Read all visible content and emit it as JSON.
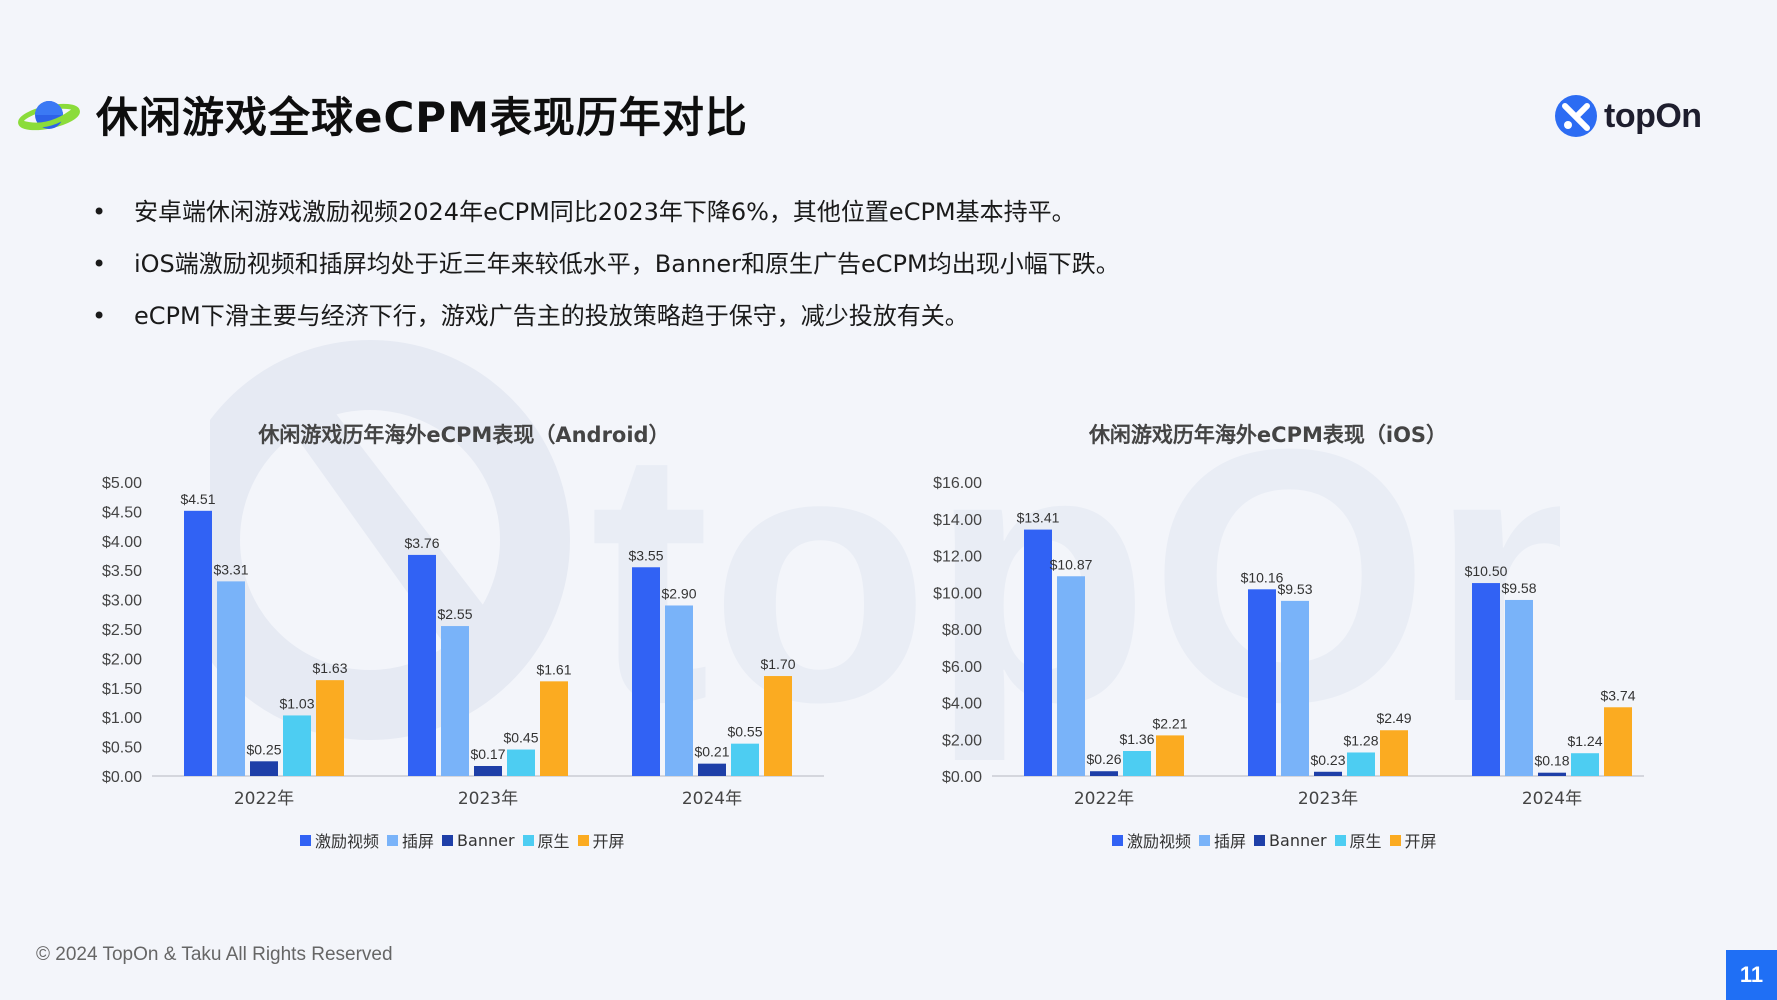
{
  "page": {
    "title": "休闲游戏全球eCPM表现历年对比",
    "logo_text": "topOn",
    "footer": "© 2024 TopOn & Taku All Rights Reserved",
    "page_number": "11",
    "bullets": [
      "安卓端休闲游戏激励视频2024年eCPM同比2023年下降6%，其他位置eCPM基本持平。",
      "iOS端激励视频和插屏均处于近三年来较低水平，Banner和原生广告eCPM均出现小幅下跌。",
      "eCPM下滑主要与经济下行，游戏广告主的投放策略趋于保守，减少投放有关。"
    ],
    "bullet_glyph": "•",
    "colors": {
      "激励视频": "#3162f4",
      "插屏": "#79b3f9",
      "Banner": "#1e3fa8",
      "原生": "#4dcdf2",
      "开屏": "#fbab21",
      "page_number_bg": "#1f6ff5"
    }
  },
  "chart_data": [
    {
      "type": "bar",
      "title": "休闲游戏历年海外eCPM表现（Android）",
      "categories": [
        "2022年",
        "2023年",
        "2024年"
      ],
      "ylim": [
        0,
        5
      ],
      "yticks": [
        "$0.00",
        "$0.50",
        "$1.00",
        "$1.50",
        "$2.00",
        "$2.50",
        "$3.00",
        "$3.50",
        "$4.00",
        "$4.50",
        "$5.00"
      ],
      "legend_position": "bottom",
      "grid": false,
      "series": [
        {
          "name": "激励视频",
          "values": [
            4.51,
            3.76,
            3.55
          ],
          "labels": [
            "$4.51",
            "$3.76",
            "$3.55"
          ]
        },
        {
          "name": "插屏",
          "values": [
            3.31,
            2.55,
            2.9
          ],
          "labels": [
            "$3.31",
            "$2.55",
            "$2.90"
          ]
        },
        {
          "name": "Banner",
          "values": [
            0.25,
            0.17,
            0.21
          ],
          "labels": [
            "$0.25",
            "$0.17",
            "$0.21"
          ]
        },
        {
          "name": "原生",
          "values": [
            1.03,
            0.45,
            0.55
          ],
          "labels": [
            "$1.03",
            "$0.45",
            "$0.55"
          ]
        },
        {
          "name": "开屏",
          "values": [
            1.63,
            1.61,
            1.7
          ],
          "labels": [
            "$1.63",
            "$1.61",
            "$1.70"
          ]
        }
      ]
    },
    {
      "type": "bar",
      "title": "休闲游戏历年海外eCPM表现（iOS）",
      "categories": [
        "2022年",
        "2023年",
        "2024年"
      ],
      "ylim": [
        0,
        16
      ],
      "yticks": [
        "$0.00",
        "$2.00",
        "$4.00",
        "$6.00",
        "$8.00",
        "$10.00",
        "$12.00",
        "$14.00",
        "$16.00"
      ],
      "legend_position": "bottom",
      "grid": false,
      "series": [
        {
          "name": "激励视频",
          "values": [
            13.41,
            10.16,
            10.5
          ],
          "labels": [
            "$13.41",
            "$10.16",
            "$10.50"
          ]
        },
        {
          "name": "插屏",
          "values": [
            10.87,
            9.53,
            9.58
          ],
          "labels": [
            "$10.87",
            "$9.53",
            "$9.58"
          ]
        },
        {
          "name": "Banner",
          "values": [
            0.26,
            0.23,
            0.18
          ],
          "labels": [
            "$0.26",
            "$0.23",
            "$0.18"
          ]
        },
        {
          "name": "原生",
          "values": [
            1.36,
            1.28,
            1.24
          ],
          "labels": [
            "$1.36",
            "$1.28",
            "$1.24"
          ]
        },
        {
          "name": "开屏",
          "values": [
            2.21,
            2.49,
            3.74
          ],
          "labels": [
            "$2.21",
            "$2.49",
            "$3.74"
          ]
        }
      ]
    }
  ]
}
